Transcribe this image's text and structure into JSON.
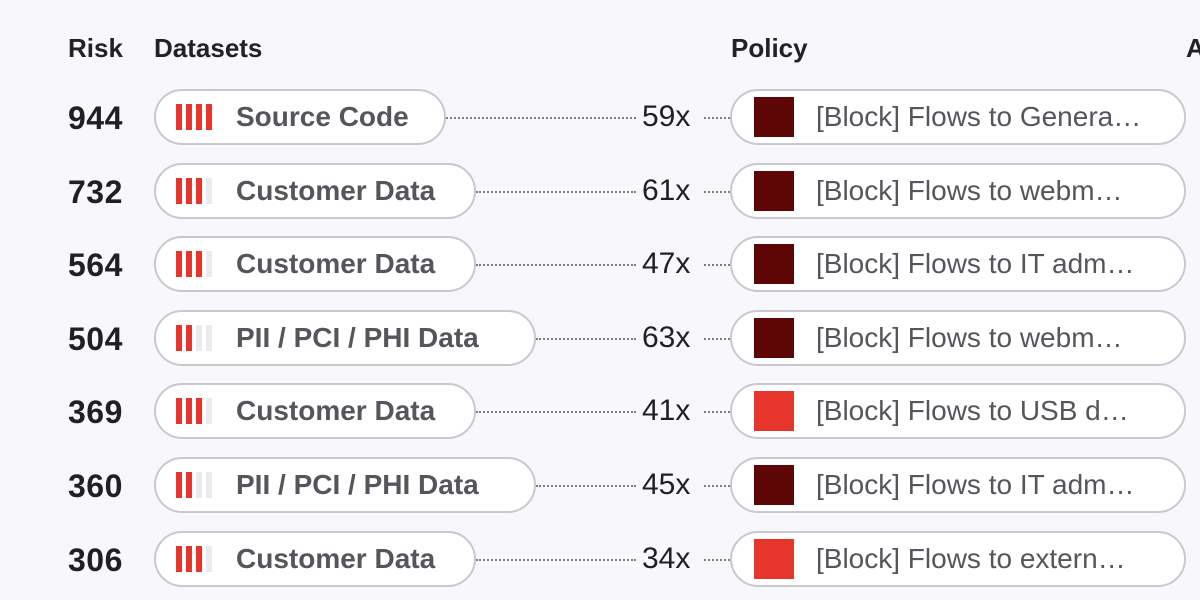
{
  "headers": {
    "risk": "Risk",
    "datasets": "Datasets",
    "policy": "Policy",
    "extra": "A"
  },
  "colors": {
    "bar_active": "#e8352b",
    "bar_inactive": "#eceaef",
    "policy_dark": "#5e0505",
    "policy_red": "#e8352b"
  },
  "rows": [
    {
      "risk": "944",
      "dataset": "Source Code",
      "level": 4,
      "count": "59x",
      "policy": "[Block] Flows to Genera…",
      "policy_color": "dark"
    },
    {
      "risk": "732",
      "dataset": "Customer Data",
      "level": 3,
      "count": "61x",
      "policy": "[Block] Flows to webm…",
      "policy_color": "dark"
    },
    {
      "risk": "564",
      "dataset": "Customer Data",
      "level": 3,
      "count": "47x",
      "policy": "[Block] Flows to IT adm…",
      "policy_color": "dark"
    },
    {
      "risk": "504",
      "dataset": "PII / PCI / PHI Data",
      "level": 2,
      "count": "63x",
      "policy": "[Block] Flows to webm…",
      "policy_color": "dark"
    },
    {
      "risk": "369",
      "dataset": "Customer Data",
      "level": 3,
      "count": "41x",
      "policy": "[Block] Flows to USB d…",
      "policy_color": "red"
    },
    {
      "risk": "360",
      "dataset": "PII / PCI / PHI Data",
      "level": 2,
      "count": "45x",
      "policy": "[Block] Flows to IT adm…",
      "policy_color": "dark"
    },
    {
      "risk": "306",
      "dataset": "Customer Data",
      "level": 3,
      "count": "34x",
      "policy": "[Block] Flows to extern…",
      "policy_color": "red"
    }
  ]
}
